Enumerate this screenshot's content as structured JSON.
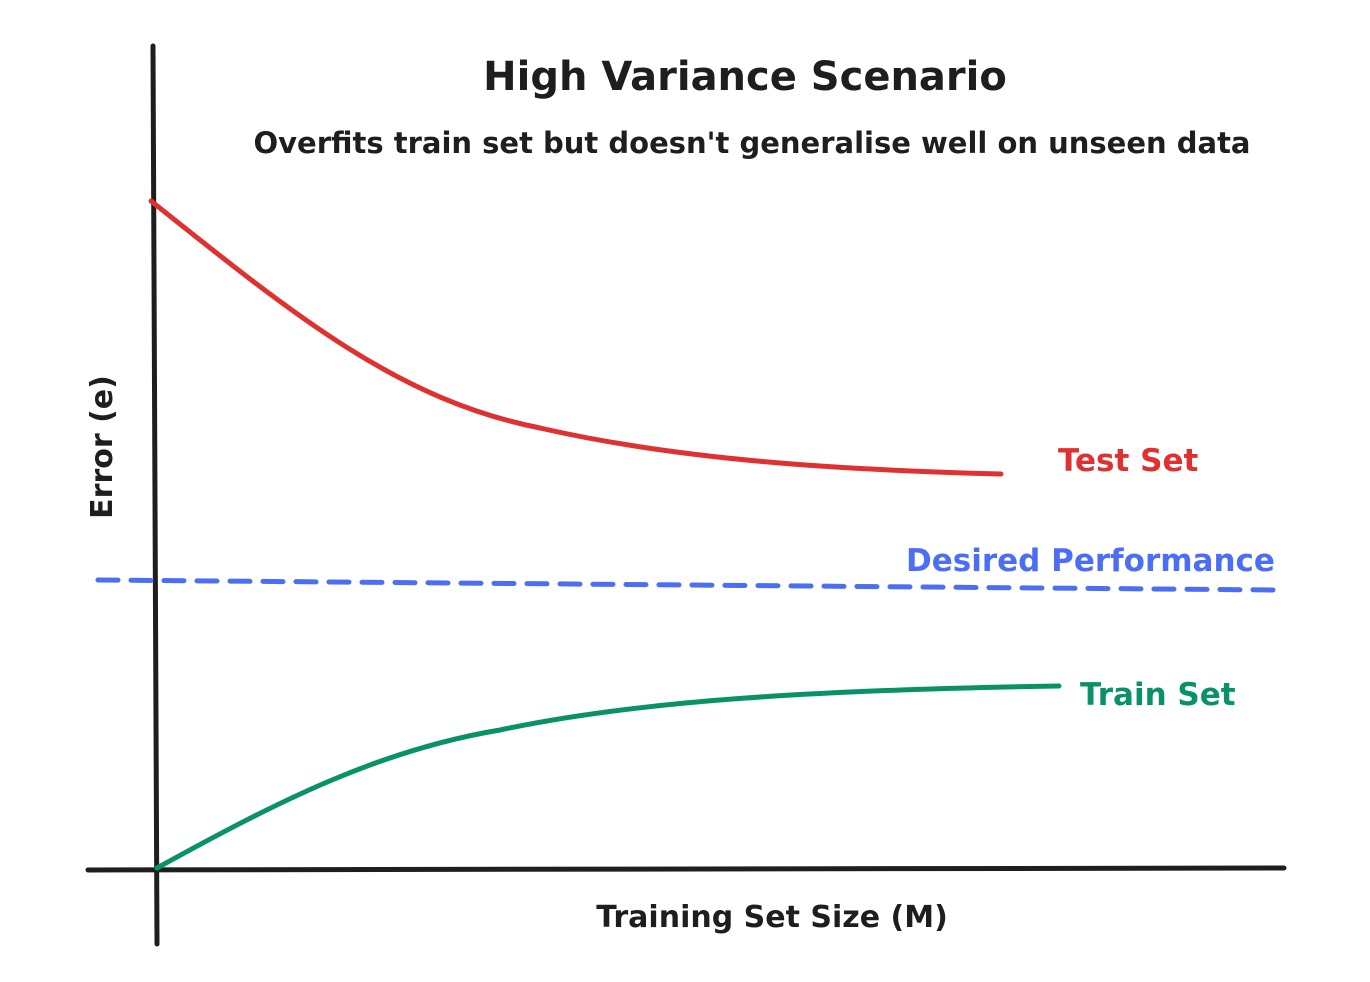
{
  "title": "High Variance Scenario",
  "subtitle": "Overfits train set but doesn't generalise well on unseen data",
  "x_axis_label": "Training Set Size (M)",
  "y_axis_label": "Error (e)",
  "colors": {
    "axis": "#1e1e1e",
    "test": "#e03131",
    "train": "#099268",
    "desired": "#4c6ef5",
    "background": "#ffffff"
  },
  "series": {
    "test": {
      "label": "Test Set"
    },
    "desired": {
      "label": "Desired Performance"
    },
    "train": {
      "label": "Train Set"
    }
  }
}
